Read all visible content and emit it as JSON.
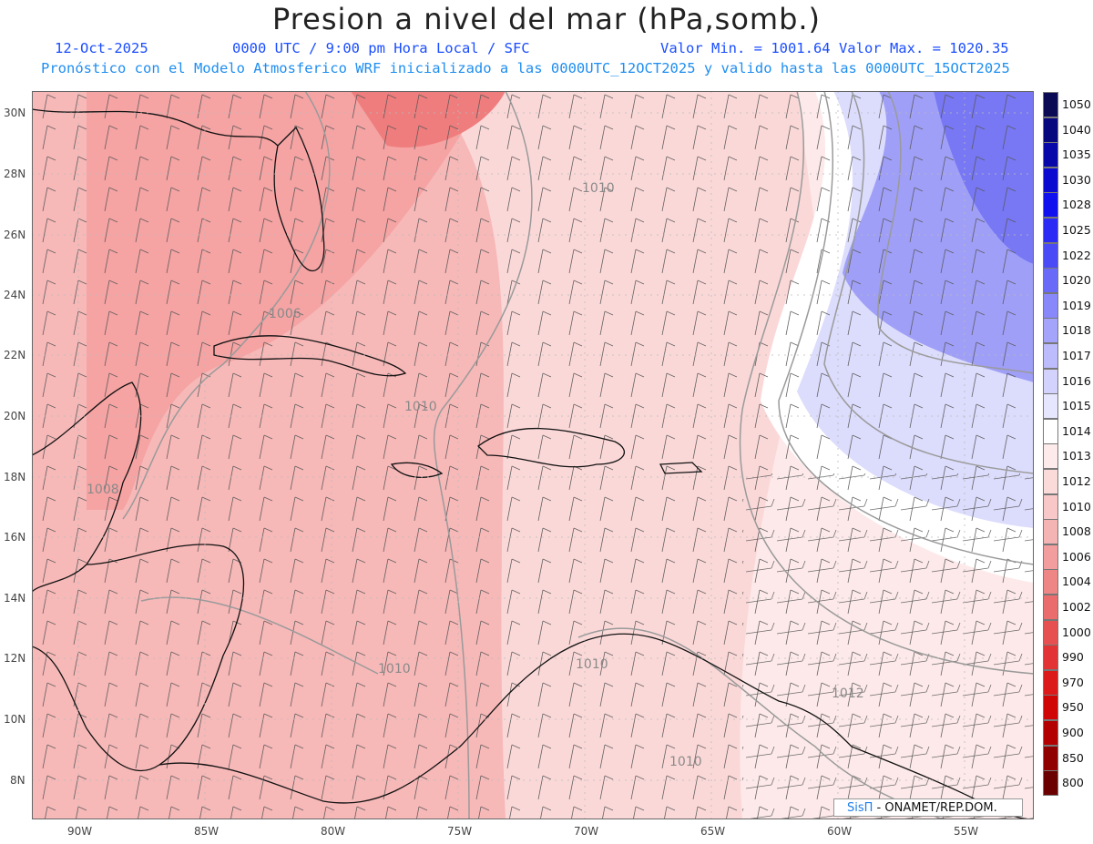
{
  "header": {
    "title": "Presion a nivel del mar (hPa,somb.)",
    "date": "12-Oct-2025",
    "time_info": "0000 UTC / 9:00 pm Hora Local / SFC",
    "value_range": "Valor Min. = 1001.64  Valor Max. = 1020.35",
    "model_info": "Pronóstico con el Modelo Atmosferico WRF inicializado a las 0000UTC_12OCT2025 y valido hasta las  0000UTC_15OCT2025"
  },
  "axes": {
    "lat_labels": [
      "30N",
      "28N",
      "26N",
      "24N",
      "22N",
      "20N",
      "18N",
      "16N",
      "14N",
      "12N",
      "10N",
      "8N"
    ],
    "lon_labels": [
      "90W",
      "85W",
      "80W",
      "75W",
      "70W",
      "65W",
      "60W",
      "55W"
    ]
  },
  "contour_labels": [
    "1010",
    "1006",
    "1010",
    "1008",
    "1010",
    "1010",
    "1012",
    "1010"
  ],
  "colorbar": {
    "values": [
      "1050",
      "1040",
      "1035",
      "1030",
      "1028",
      "1025",
      "1022",
      "1020",
      "1019",
      "1018",
      "1017",
      "1016",
      "1015",
      "1014",
      "1013",
      "1012",
      "1010",
      "1008",
      "1006",
      "1004",
      "1002",
      "1000",
      "990",
      "970",
      "950",
      "900",
      "850",
      "800"
    ],
    "colors": [
      "#0a0a55",
      "#07077e",
      "#0808a8",
      "#0a0ad0",
      "#1111f0",
      "#2b2bf5",
      "#4a4af7",
      "#6a6af8",
      "#8888fa",
      "#a4a4fb",
      "#bcbcfc",
      "#d2d2fd",
      "#e6e6fe",
      "#ffffff",
      "#fdeaea",
      "#fbdada",
      "#f8c8c8",
      "#f5b4b4",
      "#f29e9e",
      "#ee8686",
      "#ea6c6c",
      "#e65050",
      "#e23434",
      "#dd1a1a",
      "#d00606",
      "#b30000",
      "#900000",
      "#6a0000"
    ]
  },
  "credit": {
    "brand": "SisΠ",
    "text": " - ONAMET/REP.DOM."
  }
}
